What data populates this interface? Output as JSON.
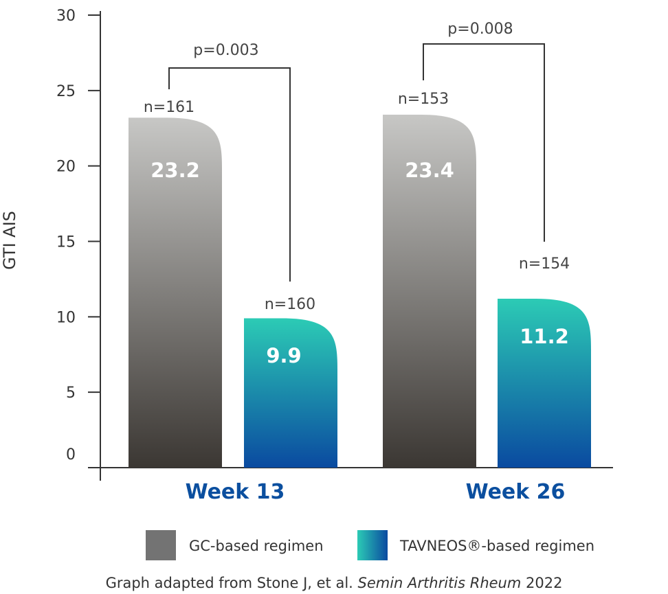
{
  "chart_data": {
    "type": "bar",
    "ylabel": "GTI AIS",
    "ylim": [
      0,
      30
    ],
    "yticks": [
      0,
      5,
      10,
      15,
      20,
      25,
      30
    ],
    "categories": [
      "Week 13",
      "Week 26"
    ],
    "series": [
      {
        "name": "GC-based regimen",
        "values": [
          23.2,
          23.4
        ],
        "n": [
          "n=161",
          "n=153"
        ],
        "colors": [
          "#c7c7c5",
          "#3b3733"
        ],
        "value_labels": [
          "23.2",
          "23.4"
        ]
      },
      {
        "name": "TAVNEOS®-based regimen",
        "values": [
          9.9,
          11.2
        ],
        "n": [
          "n=160",
          "n=154"
        ],
        "colors": [
          "#2ccbb5",
          "#0a4aa0"
        ],
        "value_labels": [
          "9.9",
          "11.2"
        ]
      }
    ],
    "p_values": [
      "p=0.003",
      "p=0.008"
    ],
    "legend_position": "bottom",
    "grid": false
  },
  "legend": {
    "gc_label": "GC-based regimen",
    "gc_color": "#737373",
    "tav_label": "TAVNEOS®-based regimen"
  },
  "citation": {
    "prefix": "Graph adapted from Stone J, et al. ",
    "journal": "Semin Arthritis Rheum",
    "year": " 2022"
  },
  "colors": {
    "axis": "#333333",
    "category_text": "#0b4f9f"
  }
}
